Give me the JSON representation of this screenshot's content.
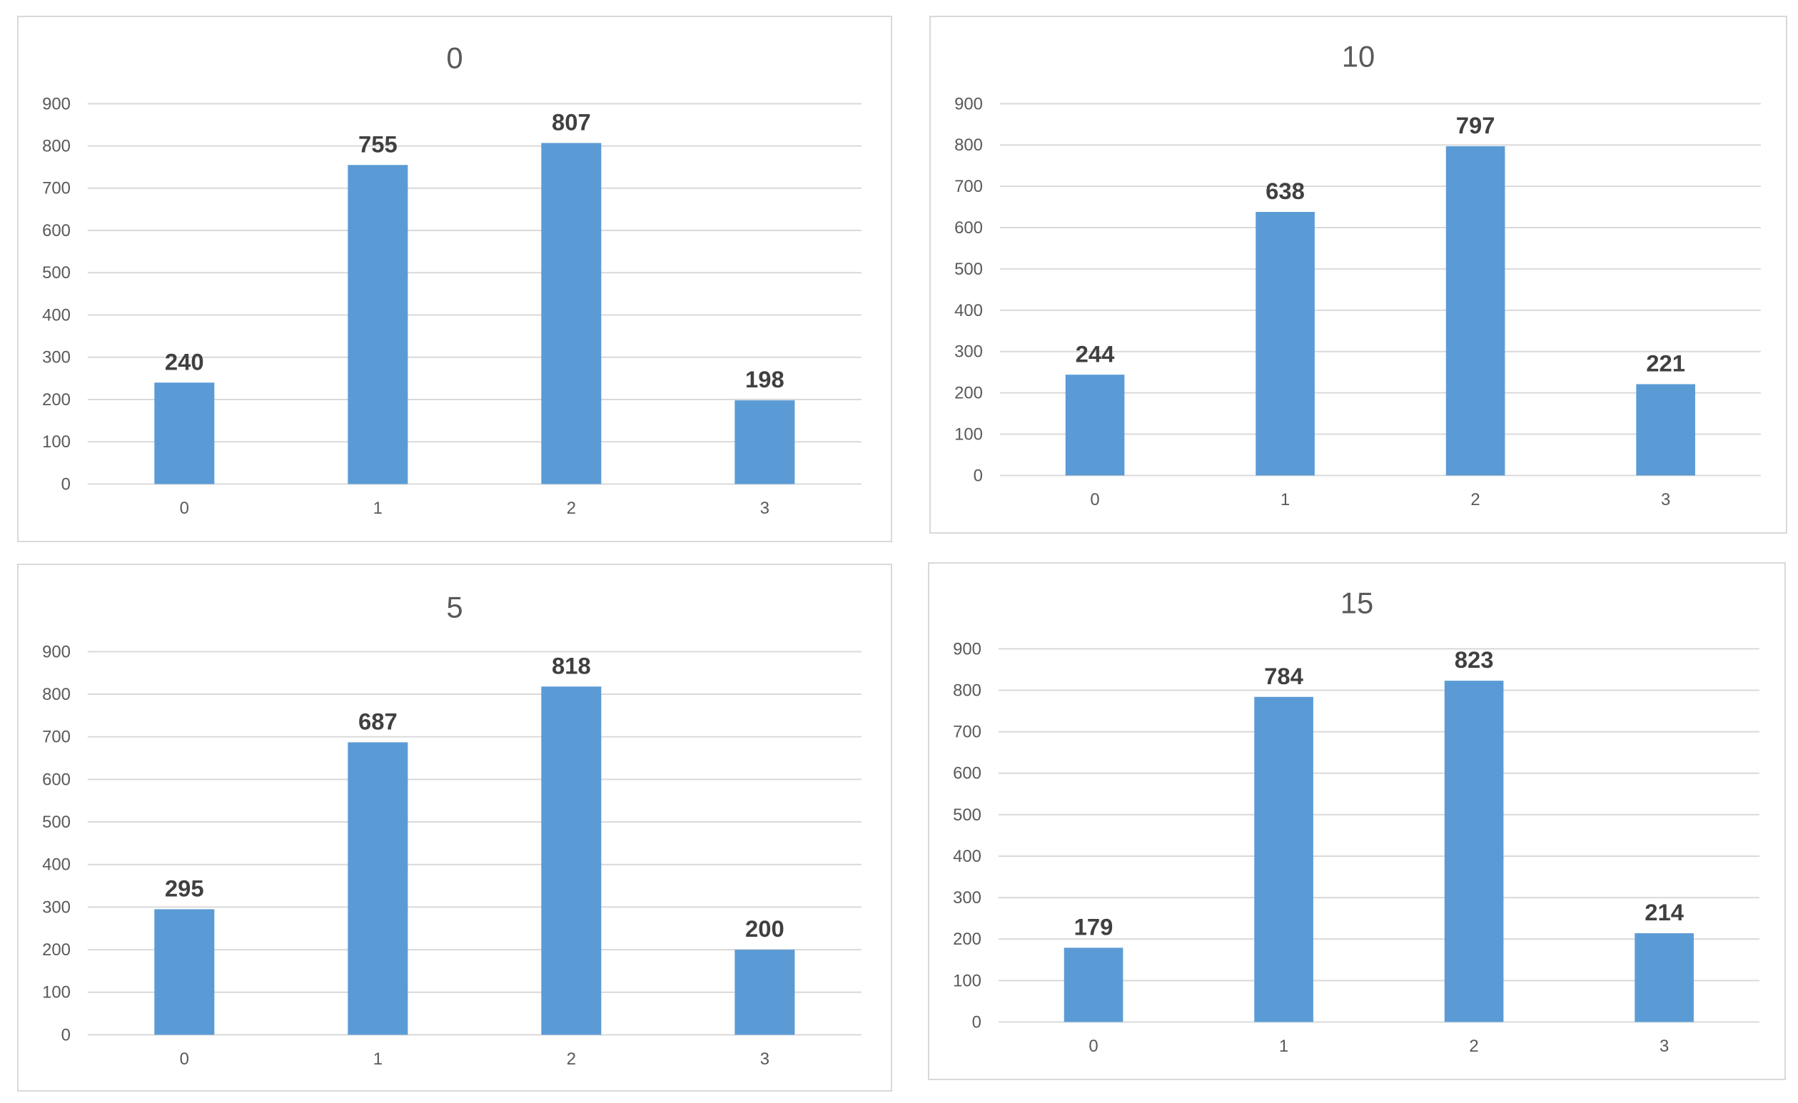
{
  "chart_data": [
    {
      "type": "bar",
      "title": "0",
      "categories": [
        "0",
        "1",
        "2",
        "3"
      ],
      "values": [
        240,
        755,
        807,
        198
      ],
      "ylim": [
        0,
        900
      ],
      "yticks": [
        0,
        100,
        200,
        300,
        400,
        500,
        600,
        700,
        800,
        900
      ],
      "grid": true,
      "legend": "none",
      "bar_color": "#5b9bd5"
    },
    {
      "type": "bar",
      "title": "10",
      "categories": [
        "0",
        "1",
        "2",
        "3"
      ],
      "values": [
        244,
        638,
        797,
        221
      ],
      "ylim": [
        0,
        900
      ],
      "yticks": [
        0,
        100,
        200,
        300,
        400,
        500,
        600,
        700,
        800,
        900
      ],
      "grid": true,
      "legend": "none",
      "bar_color": "#5b9bd5"
    },
    {
      "type": "bar",
      "title": "5",
      "categories": [
        "0",
        "1",
        "2",
        "3"
      ],
      "values": [
        295,
        687,
        818,
        200
      ],
      "ylim": [
        0,
        900
      ],
      "yticks": [
        0,
        100,
        200,
        300,
        400,
        500,
        600,
        700,
        800,
        900
      ],
      "grid": true,
      "legend": "none",
      "bar_color": "#5b9bd5"
    },
    {
      "type": "bar",
      "title": "15",
      "categories": [
        "0",
        "1",
        "2",
        "3"
      ],
      "values": [
        179,
        784,
        823,
        214
      ],
      "ylim": [
        0,
        900
      ],
      "yticks": [
        0,
        100,
        200,
        300,
        400,
        500,
        600,
        700,
        800,
        900
      ],
      "grid": true,
      "legend": "none",
      "bar_color": "#5b9bd5"
    }
  ]
}
